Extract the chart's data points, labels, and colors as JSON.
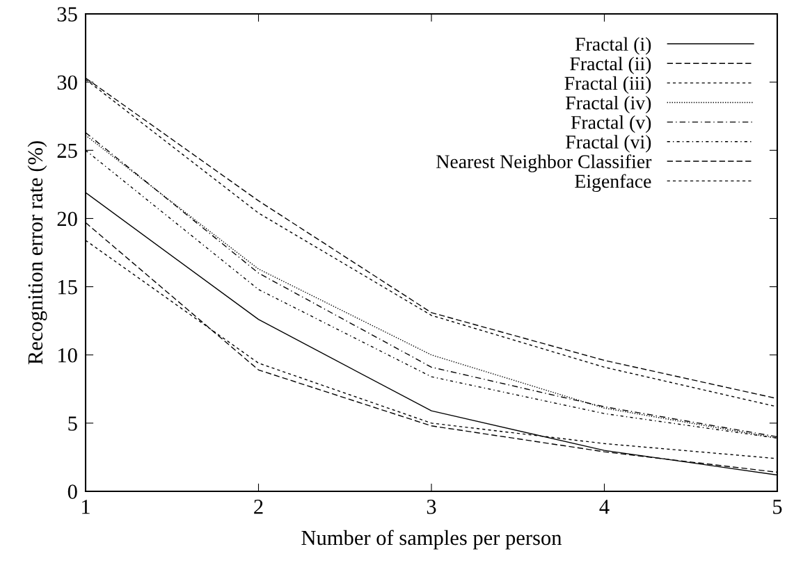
{
  "chart_data": {
    "type": "line",
    "xlabel": "Number of samples per person",
    "ylabel": "Recognition error rate (%)",
    "x": [
      1,
      2,
      3,
      4,
      5
    ],
    "xlim": [
      1,
      5
    ],
    "xticks": [
      1,
      2,
      3,
      4,
      5
    ],
    "ylim": [
      0,
      35
    ],
    "yticks": [
      0,
      5,
      10,
      15,
      20,
      25,
      30,
      35
    ],
    "grid": false,
    "legend": "top right",
    "marker": "none",
    "series": [
      {
        "name": "Fractal (i)",
        "color": "#000000",
        "line_style": "solid",
        "values": [
          21.9,
          12.6,
          5.9,
          3.0,
          1.2
        ]
      },
      {
        "name": "Fractal (ii)",
        "color": "#000000",
        "line_style": "dashed",
        "values": [
          19.7,
          8.9,
          4.8,
          2.9,
          1.4
        ]
      },
      {
        "name": "Fractal (iii)",
        "color": "#000000",
        "line_style": "dashed",
        "values": [
          18.4,
          9.4,
          5.0,
          3.5,
          2.4
        ]
      },
      {
        "name": "Fractal (iv)",
        "color": "#000000",
        "line_style": "dotted",
        "values": [
          26.1,
          16.3,
          10.0,
          6.1,
          3.9
        ]
      },
      {
        "name": "Fractal (v)",
        "color": "#000000",
        "line_style": "dashdot",
        "values": [
          26.3,
          16.0,
          9.1,
          6.2,
          4.0
        ]
      },
      {
        "name": "Fractal (vi)",
        "color": "#000000",
        "line_style": "dashdot",
        "values": [
          25.0,
          14.8,
          8.4,
          5.7,
          3.9
        ]
      },
      {
        "name": "Nearest Neighbor Classifier",
        "color": "#000000",
        "line_style": "dashed",
        "values": [
          30.3,
          21.3,
          13.1,
          9.6,
          6.8
        ]
      },
      {
        "name": "Eigenface",
        "color": "#000000",
        "line_style": "dashed",
        "values": [
          30.2,
          20.4,
          12.9,
          9.1,
          6.2
        ]
      }
    ]
  }
}
